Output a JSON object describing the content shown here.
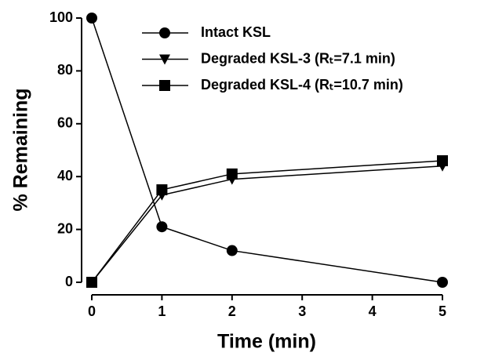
{
  "chart_data": {
    "type": "line",
    "x_label": "Time (min)",
    "y_label": "% Remaining",
    "x": [
      0,
      1,
      2,
      5
    ],
    "series": [
      {
        "name": "Intact KSL",
        "color": "#000000",
        "marker": "circle",
        "values": [
          100,
          21,
          12,
          0
        ]
      },
      {
        "name": "Degraded KSL-3 (Rₜ=7.1 min)",
        "color": "#000000",
        "marker": "triangle-down",
        "values": [
          0,
          33,
          39,
          44
        ]
      },
      {
        "name": "Degraded KSL-4 (Rₜ=10.7 min)",
        "color": "#000000",
        "marker": "square",
        "values": [
          0,
          35,
          41,
          46
        ]
      }
    ],
    "xlim": [
      0,
      5
    ],
    "xticks": [
      0,
      1,
      2,
      3,
      4,
      5
    ],
    "ylim": [
      0,
      100
    ],
    "yticks": [
      0,
      20,
      40,
      60,
      80,
      100
    ],
    "grid": false,
    "legend": "top-right"
  }
}
